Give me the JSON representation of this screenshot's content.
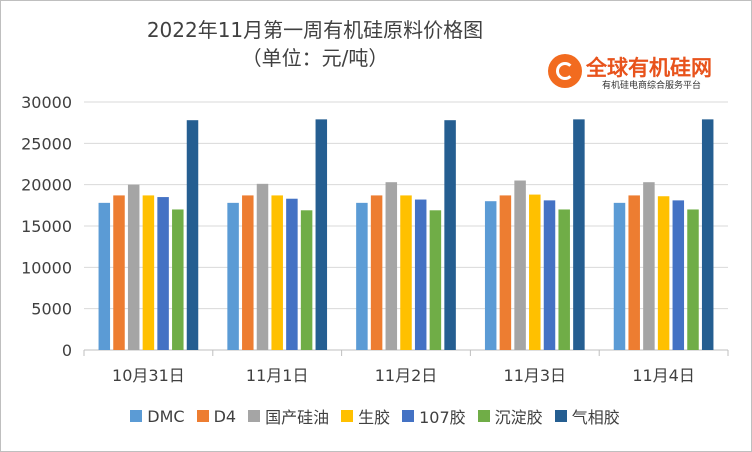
{
  "chart_data": {
    "type": "bar",
    "title": "2022年11月第一周有机硅原料价格图",
    "subtitle": "（单位：元/吨）",
    "xlabel": "",
    "ylabel": "",
    "ylim": [
      0,
      30000
    ],
    "yticks": [
      0,
      5000,
      10000,
      15000,
      20000,
      25000,
      30000
    ],
    "grid": true,
    "legend_position": "bottom",
    "categories": [
      "10月31日",
      "11月1日",
      "11月2日",
      "11月3日",
      "11月4日"
    ],
    "series": [
      {
        "name": "DMC",
        "color": "#5b9bd5",
        "values": [
          17800,
          17800,
          17800,
          18000,
          17800
        ]
      },
      {
        "name": "D4",
        "color": "#ed7d31",
        "values": [
          18700,
          18700,
          18700,
          18700,
          18700
        ]
      },
      {
        "name": "国产硅油",
        "color": "#a5a5a5",
        "values": [
          20000,
          20100,
          20300,
          20500,
          20300
        ]
      },
      {
        "name": "生胶",
        "color": "#ffc000",
        "values": [
          18700,
          18700,
          18700,
          18800,
          18600
        ]
      },
      {
        "name": "107胶",
        "color": "#4472c4",
        "values": [
          18500,
          18300,
          18200,
          18100,
          18100
        ]
      },
      {
        "name": "沉淀胶",
        "color": "#70ad47",
        "values": [
          17000,
          16900,
          16900,
          17000,
          17000
        ]
      },
      {
        "name": "气相胶",
        "color": "#255e91",
        "values": [
          27800,
          27900,
          27800,
          27900,
          27900
        ]
      }
    ]
  },
  "logo": {
    "name": "全球有机硅网",
    "tagline": "有机硅电商综合服务平台"
  }
}
